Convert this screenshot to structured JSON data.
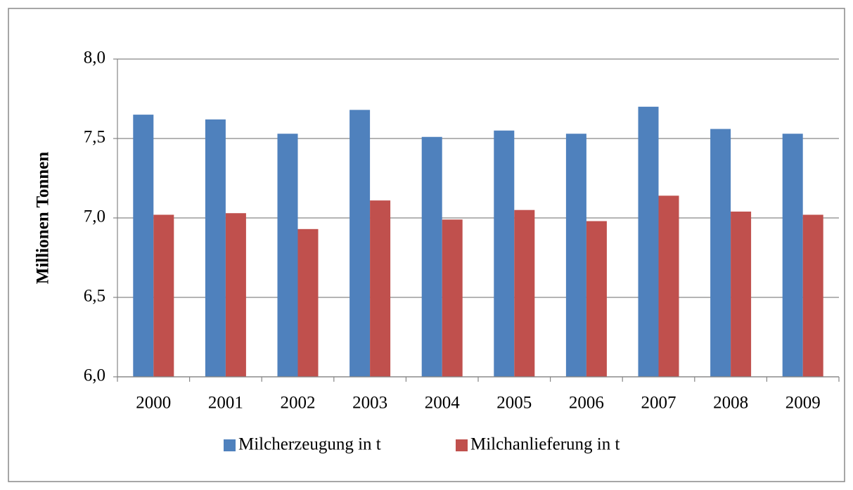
{
  "chart_data": {
    "type": "bar",
    "y_label": "Millionen Tonnen",
    "categories": [
      "2000",
      "2001",
      "2002",
      "2003",
      "2004",
      "2005",
      "2006",
      "2007",
      "2008",
      "2009"
    ],
    "series": [
      {
        "name": "Milcherzeugung in t",
        "color": "#4f81bd",
        "values": [
          7.65,
          7.62,
          7.53,
          7.68,
          7.51,
          7.55,
          7.53,
          7.7,
          7.56,
          7.53
        ]
      },
      {
        "name": "Milchanlieferung in t",
        "color": "#c0504d",
        "values": [
          7.02,
          7.03,
          6.93,
          7.11,
          6.99,
          7.05,
          6.98,
          7.14,
          7.04,
          7.02
        ]
      }
    ],
    "ylim": [
      6,
      8
    ],
    "yticks": [
      {
        "value": 6,
        "label": "6,0"
      },
      {
        "value": 6.5,
        "label": "6,5"
      },
      {
        "value": 7,
        "label": "7,0"
      },
      {
        "value": 7.5,
        "label": "7,5"
      },
      {
        "value": 8,
        "label": "8,0"
      }
    ],
    "grid": true,
    "legend": "bottom"
  }
}
